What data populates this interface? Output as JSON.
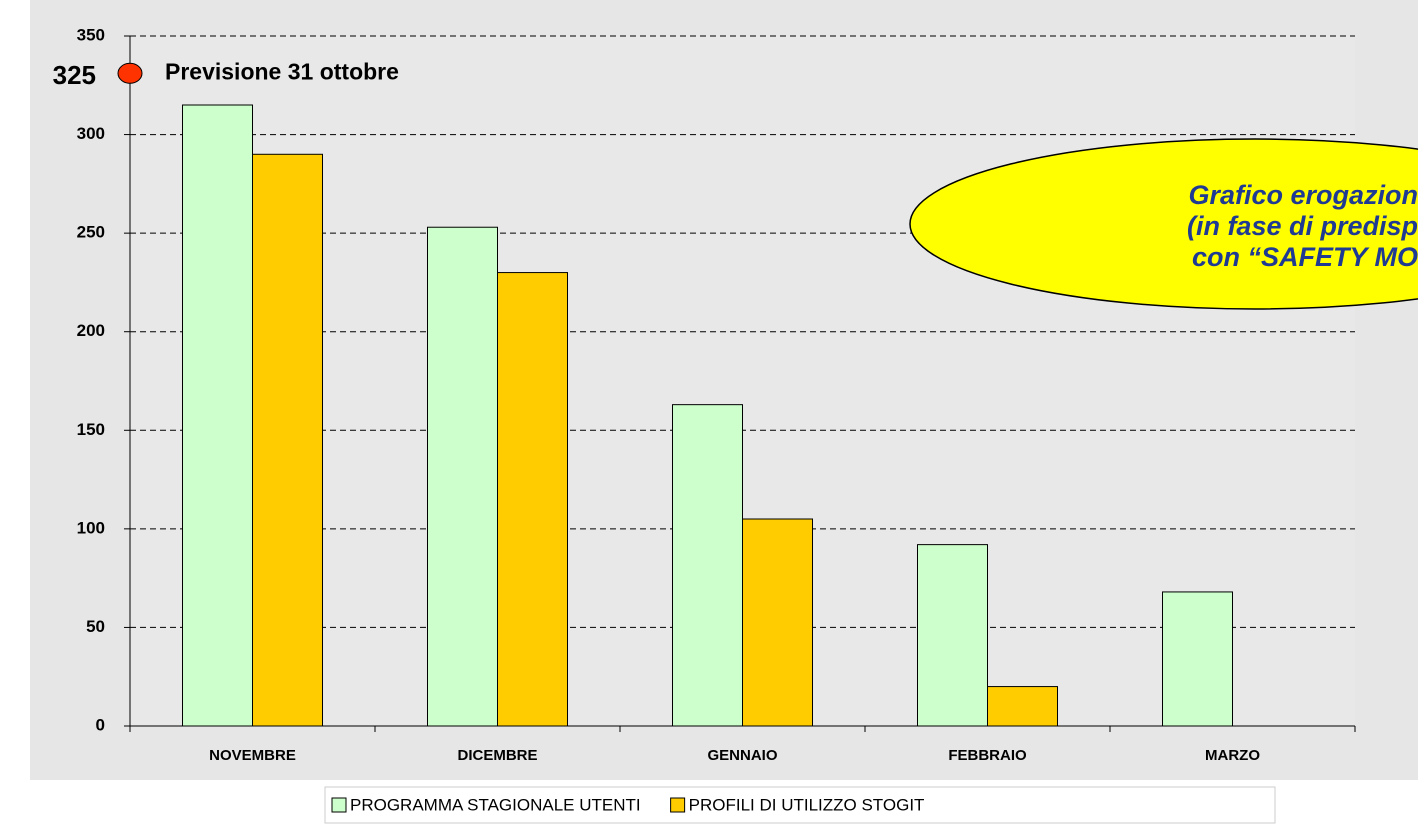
{
  "chart_data": {
    "type": "bar",
    "categories": [
      "NOVEMBRE",
      "DICEMBRE",
      "GENNAIO",
      "FEBBRAIO",
      "MARZO"
    ],
    "series": [
      {
        "name": "PROGRAMMA STAGIONALE UTENTI",
        "color": "#ccffcc",
        "values": [
          315,
          253,
          163,
          92,
          68
        ]
      },
      {
        "name": "PROFILI DI UTILIZZO STOGIT",
        "color": "#ffcc00",
        "values": [
          290,
          230,
          105,
          20,
          null
        ]
      }
    ],
    "ylim": [
      0,
      350
    ],
    "yticks": [
      0,
      50,
      100,
      150,
      200,
      250,
      300,
      350
    ],
    "grid": true,
    "reference": {
      "value": 325,
      "label": "Previsione 31 ottobre",
      "color": "#ff3300"
    },
    "callout": {
      "lines": [
        "Grafico erogazion",
        "(in fase di predisp",
        "con “SAFETY MO"
      ],
      "color": "#ffff00"
    }
  }
}
